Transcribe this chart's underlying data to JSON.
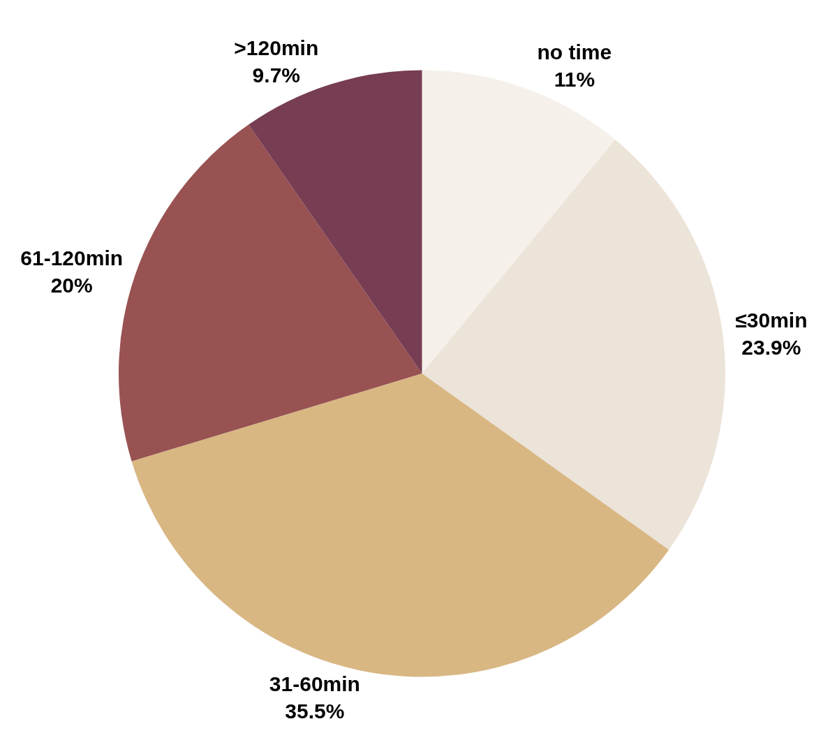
{
  "chart_data": {
    "type": "pie",
    "categories": [
      "no time",
      "≤30min",
      "31-60min",
      "61-120min",
      ">120min"
    ],
    "values": [
      11,
      23.9,
      35.5,
      20,
      9.7
    ],
    "value_labels": [
      "11%",
      "23.9%",
      "35.5%",
      "20%",
      "9.7%"
    ],
    "colors": [
      "#f5f1ea",
      "#ece3d9",
      "#d8b783",
      "#985252",
      "#773d53"
    ],
    "legend": false
  }
}
